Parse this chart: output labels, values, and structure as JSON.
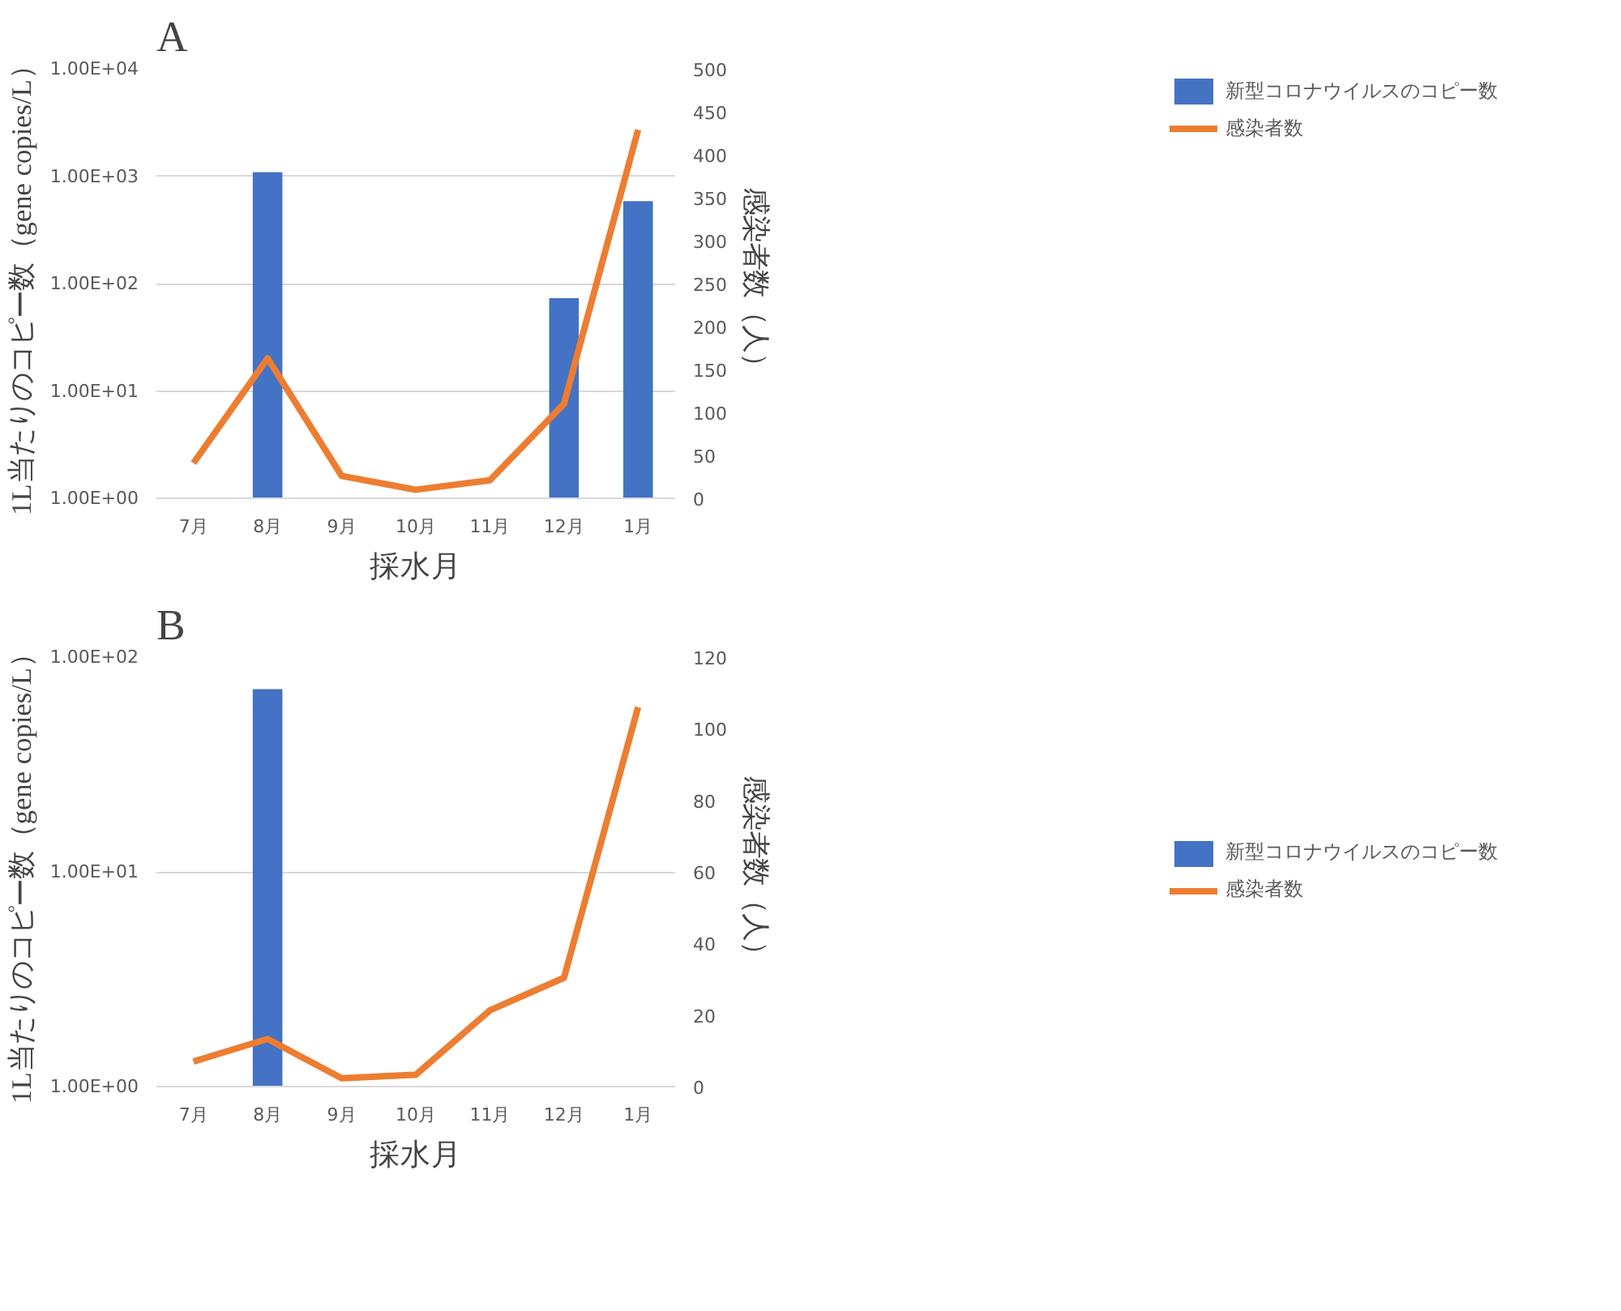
{
  "chart_data": [
    {
      "type": "bar",
      "title": "A",
      "xlabel": "採水月",
      "ylabel": "1L当たりのコピー数（gene copies/L）",
      "y2label": "感染者数（人）",
      "categories": [
        "7月",
        "8月",
        "9月",
        "10月",
        "11月",
        "12月",
        "1月"
      ],
      "series": [
        {
          "name": "新型コロナウイルスのコピー数",
          "color": "#4472c4",
          "values": [
            null,
            1090,
            null,
            null,
            null,
            73,
            586
          ]
        },
        {
          "name": "感染者数",
          "type": "line",
          "axis": "y2",
          "color": "#ed7d31",
          "values": [
            41,
            163,
            26,
            10,
            21,
            110,
            429
          ]
        }
      ],
      "log": "y",
      "ylim": [
        1,
        10000
      ],
      "yticks": [
        {
          "value": 1,
          "label": "1.00E+00"
        },
        {
          "value": 10,
          "label": "1.00E+01"
        },
        {
          "value": 100,
          "label": "1.00E+02"
        },
        {
          "value": 1000,
          "label": "1.00E+03"
        },
        {
          "value": 10000,
          "label": "1.00E+04"
        }
      ],
      "y2lim": [
        0,
        500
      ],
      "y2ticks": [
        0,
        50,
        100,
        150,
        200,
        250,
        300,
        350,
        400,
        450,
        500
      ],
      "grid": "y",
      "legend": "top right",
      "line_style": "solid",
      "marker": "none"
    },
    {
      "type": "bar",
      "title": "B",
      "xlabel": "採水月",
      "ylabel": "1L当たりのコピー数（gene copies/L）",
      "y2label": "感染者数（人）",
      "categories": [
        "7月",
        "8月",
        "9月",
        "10月",
        "11月",
        "12月",
        "1月"
      ],
      "series": [
        {
          "name": "新型コロナウイルスのコピー数",
          "color": "#4472c4",
          "values": [
            null,
            71,
            null,
            null,
            null,
            null,
            null
          ]
        },
        {
          "name": "感染者数",
          "type": "line",
          "axis": "y2",
          "color": "#ed7d31",
          "values": [
            7,
            13.3,
            2.3,
            3.3,
            21.3,
            30.4,
            106
          ]
        }
      ],
      "log": "y",
      "ylim": [
        1,
        100
      ],
      "yticks": [
        {
          "value": 1,
          "label": "1.00E+00"
        },
        {
          "value": 10,
          "label": "1.00E+01"
        },
        {
          "value": 100,
          "label": "1.00E+02"
        }
      ],
      "y2lim": [
        0,
        120
      ],
      "y2ticks": [
        0,
        20,
        40,
        60,
        80,
        100,
        120
      ],
      "grid": "y",
      "legend": "right",
      "line_style": "solid",
      "marker": "none"
    }
  ]
}
